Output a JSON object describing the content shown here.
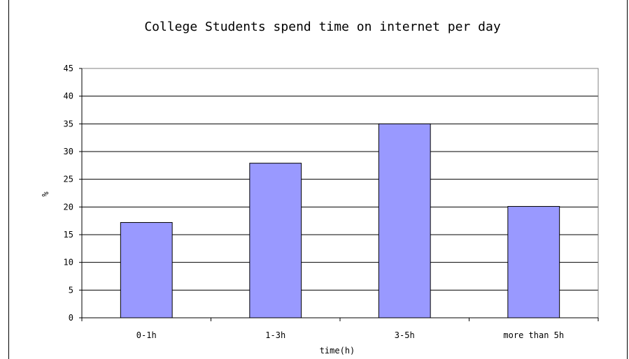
{
  "chart_data": {
    "type": "bar",
    "title": "College Students spend time on internet per day",
    "xlabel": "time(h)",
    "ylabel": "%",
    "categories": [
      "0-1h",
      "1-3h",
      "3-5h",
      "more than 5h"
    ],
    "values": [
      17.2,
      27.9,
      35,
      20.1
    ],
    "ylim": [
      0,
      45
    ],
    "yticks": [
      0,
      5,
      10,
      15,
      20,
      25,
      30,
      35,
      40,
      45
    ],
    "grid": true,
    "legend": "none",
    "colors": {
      "bar_fill": "#9999FF",
      "bar_stroke": "#000000",
      "grid": "#000000",
      "plot_background": "#FFFFFF"
    }
  }
}
